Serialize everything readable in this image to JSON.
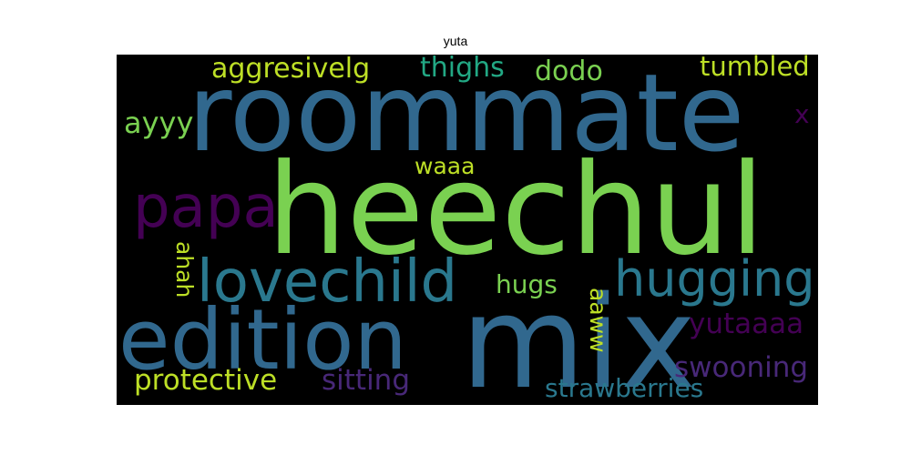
{
  "title": "yuta",
  "words": {
    "roommate": "roommate",
    "heechul": "heechul",
    "mix": "mix",
    "edition": "edition",
    "lovechild": "lovechild",
    "hugging": "hugging",
    "papa": "papa",
    "aggresivelg": "aggresivelg",
    "thighs": "thighs",
    "dodo": "dodo",
    "tumbled": "tumbled",
    "ayyy": "ayyy",
    "x": "x",
    "waaa": "waaa",
    "ahah": "ahah",
    "hugs": "hugs",
    "aaww": "aaww",
    "yutaaaa": "yutaaaa",
    "swooning": "swooning",
    "protective": "protective",
    "sitting": "sitting",
    "strawberries": "strawberries"
  },
  "colors": {
    "background": "#000000",
    "teal_blue": "#31688e",
    "green": "#7ad151",
    "purple": "#440154",
    "dark_purple": "#482878",
    "teal": "#21918c",
    "light_green": "#bddf26",
    "aqua": "#2a788e",
    "sea_green": "#22a884"
  }
}
